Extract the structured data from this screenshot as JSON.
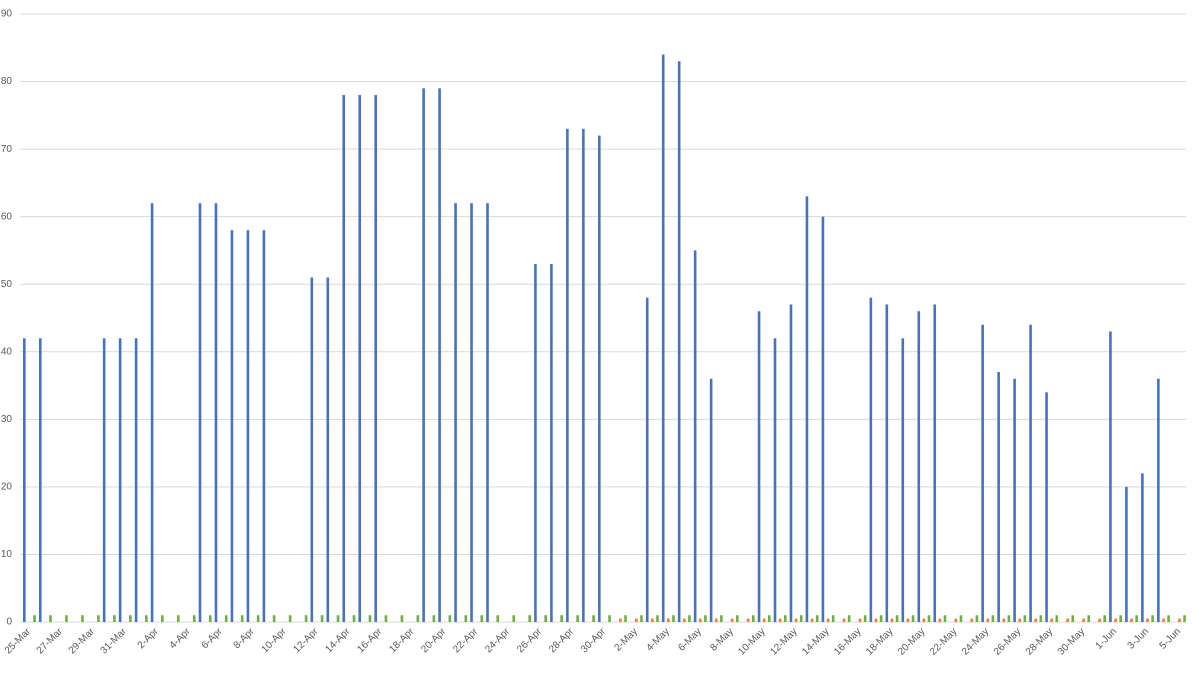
{
  "chart_data": {
    "type": "bar",
    "categories": [
      "25-Mar",
      null,
      "27-Mar",
      null,
      "29-Mar",
      null,
      "31-Mar",
      null,
      "2-Apr",
      null,
      "4-Apr",
      null,
      "6-Apr",
      null,
      "8-Apr",
      null,
      "10-Apr",
      null,
      "12-Apr",
      null,
      "14-Apr",
      null,
      "16-Apr",
      null,
      "18-Apr",
      null,
      "20-Apr",
      null,
      "22-Apr",
      null,
      "24-Apr",
      null,
      "26-Apr",
      null,
      "28-Apr",
      null,
      "30-Apr",
      null,
      "2-May",
      null,
      "4-May",
      null,
      "6-May",
      null,
      "8-May",
      null,
      "10-May",
      null,
      "12-May",
      null,
      "14-May",
      null,
      "16-May",
      null,
      "18-May",
      null,
      "20-May",
      null,
      "22-May",
      null,
      "24-May",
      null,
      "26-May",
      null,
      "28-May",
      null,
      "30-May",
      null,
      "1-Jun",
      null,
      "3-Jun",
      null,
      "5-Jun"
    ],
    "series": [
      {
        "color": "#4472c4",
        "values": [
          42,
          42,
          null,
          null,
          null,
          42,
          42,
          42,
          62,
          null,
          null,
          62,
          62,
          58,
          58,
          58,
          null,
          null,
          51,
          51,
          78,
          78,
          78,
          null,
          null,
          79,
          79,
          62,
          62,
          62,
          null,
          null,
          53,
          53,
          73,
          73,
          72,
          null,
          null,
          48,
          84,
          83,
          55,
          36,
          null,
          null,
          46,
          42,
          47,
          63,
          60,
          null,
          null,
          48,
          47,
          42,
          46,
          47,
          null,
          null,
          44,
          37,
          36,
          44,
          34,
          null,
          null,
          null,
          43,
          20,
          22,
          36,
          null
        ]
      },
      {
        "color": "#ed7d31",
        "values": [
          0,
          0,
          0,
          0,
          0,
          0,
          0,
          0,
          0,
          0,
          0,
          0,
          0,
          0,
          0,
          0,
          0,
          0,
          0,
          0,
          0,
          0,
          0,
          0,
          0,
          0,
          0,
          0,
          0,
          0,
          0,
          0,
          0,
          0,
          0,
          0,
          0,
          0.5,
          0.5,
          0.5,
          0.5,
          0.5,
          0.5,
          0.5,
          0.5,
          0.5,
          0.5,
          0.5,
          0.5,
          0.5,
          0.5,
          0.5,
          0.5,
          0.5,
          0.5,
          0.5,
          0.5,
          0.5,
          0.5,
          0.5,
          0.5,
          0.5,
          0.5,
          0.5,
          0.5,
          0.5,
          0.5,
          0.5,
          0.5,
          0.5,
          0.5,
          0.5,
          0.5
        ]
      },
      {
        "color": "#70ad47",
        "values": [
          1,
          1,
          1,
          1,
          1,
          1,
          1,
          1,
          1,
          1,
          1,
          1,
          1,
          1,
          1,
          1,
          1,
          1,
          1,
          1,
          1,
          1,
          1,
          1,
          1,
          1,
          1,
          1,
          1,
          1,
          1,
          1,
          1,
          1,
          1,
          1,
          1,
          1,
          1,
          1,
          1,
          1,
          1,
          1,
          1,
          1,
          1,
          1,
          1,
          1,
          1,
          1,
          1,
          1,
          1,
          1,
          1,
          1,
          1,
          1,
          1,
          1,
          1,
          1,
          1,
          1,
          1,
          1,
          1,
          1,
          1,
          1,
          1
        ]
      }
    ],
    "ylim": [
      0,
      90
    ],
    "yticks": [
      0,
      10,
      20,
      30,
      40,
      50,
      60,
      70,
      80,
      90
    ],
    "grid": true
  }
}
